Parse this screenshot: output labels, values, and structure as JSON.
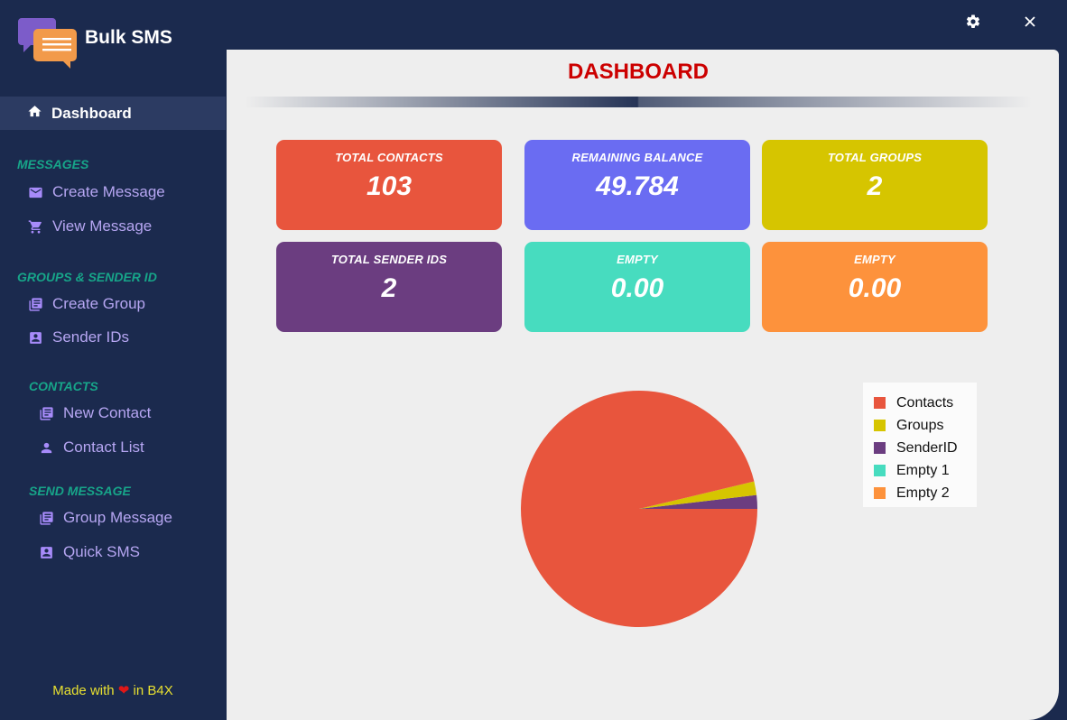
{
  "app": {
    "title": "Bulk SMS",
    "window_controls": {
      "settings_icon": "gear-icon",
      "close_icon": "close-icon"
    }
  },
  "sidebar": {
    "active": {
      "label": "Dashboard",
      "icon": "home-icon"
    },
    "sections": [
      {
        "title": "MESSAGES",
        "items": [
          {
            "label": "Create Message",
            "icon": "mail-icon"
          },
          {
            "label": "View Message",
            "icon": "cart-icon"
          }
        ]
      },
      {
        "title": "GROUPS & SENDER ID",
        "items": [
          {
            "label": "Create Group",
            "icon": "list-icon"
          },
          {
            "label": "Sender IDs",
            "icon": "id-card-icon"
          }
        ]
      },
      {
        "title": "CONTACTS",
        "items": [
          {
            "label": "New Contact",
            "icon": "list-icon"
          },
          {
            "label": "Contact List",
            "icon": "person-icon"
          }
        ]
      },
      {
        "title": "SEND MESSAGE",
        "items": [
          {
            "label": "Group Message",
            "icon": "list-icon"
          },
          {
            "label": "Quick SMS",
            "icon": "id-card-icon"
          }
        ]
      }
    ],
    "footer": {
      "pre": "Made with",
      "post": "in B4X",
      "heart": "❤"
    }
  },
  "main": {
    "title": "DASHBOARD",
    "cards": [
      {
        "label": "TOTAL CONTACTS",
        "value": "103",
        "color": "#e8553d"
      },
      {
        "label": "REMAINING BALANCE",
        "value": "49.784",
        "color": "#6a6cf2"
      },
      {
        "label": "TOTAL GROUPS",
        "value": "2",
        "color": "#d6c500"
      },
      {
        "label": "TOTAL SENDER IDS",
        "value": "2",
        "color": "#6b3d80"
      },
      {
        "label": "EMPTY",
        "value": "0.00",
        "color": "#47dcbf"
      },
      {
        "label": "EMPTY",
        "value": "0.00",
        "color": "#fd923c"
      }
    ]
  },
  "chart_data": {
    "type": "pie",
    "title": "",
    "categories": [
      "Contacts",
      "Groups",
      "SenderID",
      "Empty 1",
      "Empty 2"
    ],
    "values": [
      103,
      2,
      2,
      0,
      0
    ],
    "colors": [
      "#e8553d",
      "#d6c500",
      "#6b3d80",
      "#47dcbf",
      "#fd923c"
    ],
    "legend_position": "top-right"
  }
}
